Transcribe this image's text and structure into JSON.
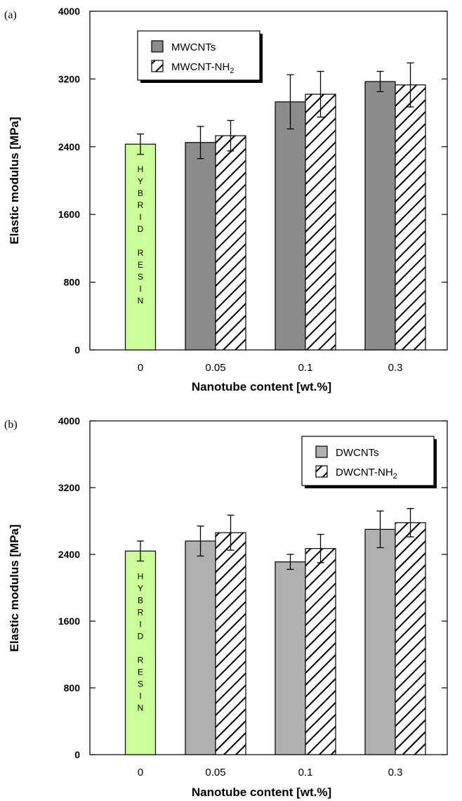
{
  "chart_data": [
    {
      "type": "bar",
      "panel_label": "(a)",
      "xlabel": "Nanotube content [wt.%]",
      "ylabel": "Elastic modulus [MPa]",
      "ylim": [
        0,
        4000
      ],
      "yticks": [
        "0",
        "800",
        "1600",
        "2400",
        "3200",
        "4000"
      ],
      "categories": [
        "0",
        "0.05",
        "0.1",
        "0.3"
      ],
      "baseline": {
        "category": "0",
        "value": 2430,
        "error": 120,
        "label": "HYBRID RESIN",
        "color": "#ccff99"
      },
      "series": [
        {
          "name": "MWCNTs",
          "name_sub": "",
          "pattern": "solid",
          "color": "#8c8c8c",
          "values": [
            null,
            2450,
            2930,
            3170
          ],
          "errors": [
            null,
            190,
            320,
            120
          ]
        },
        {
          "name": "MWCNT-NH",
          "name_sub": "2",
          "pattern": "hatch",
          "color": "#ffffff",
          "values": [
            null,
            2530,
            3020,
            3130
          ],
          "errors": [
            null,
            180,
            270,
            260
          ]
        }
      ],
      "legend_position": "top-left"
    },
    {
      "type": "bar",
      "panel_label": "(b)",
      "xlabel": "Nanotube content [wt.%]",
      "ylabel": "Elastic modulus [MPa]",
      "ylim": [
        0,
        4000
      ],
      "yticks": [
        "0",
        "800",
        "1600",
        "2400",
        "3200",
        "4000"
      ],
      "categories": [
        "0",
        "0.05",
        "0.1",
        "0.3"
      ],
      "baseline": {
        "category": "0",
        "value": 2440,
        "error": 120,
        "label": "HYBRID RESIN",
        "color": "#ccff99"
      },
      "series": [
        {
          "name": "DWCNTs",
          "name_sub": "",
          "pattern": "solid",
          "color": "#b0b0b0",
          "values": [
            null,
            2560,
            2310,
            2700
          ],
          "errors": [
            null,
            180,
            90,
            220
          ]
        },
        {
          "name": "DWCNT-NH",
          "name_sub": "2",
          "pattern": "hatch",
          "color": "#ffffff",
          "values": [
            null,
            2660,
            2470,
            2780
          ],
          "errors": [
            null,
            210,
            170,
            170
          ]
        }
      ],
      "legend_position": "top-right"
    }
  ]
}
